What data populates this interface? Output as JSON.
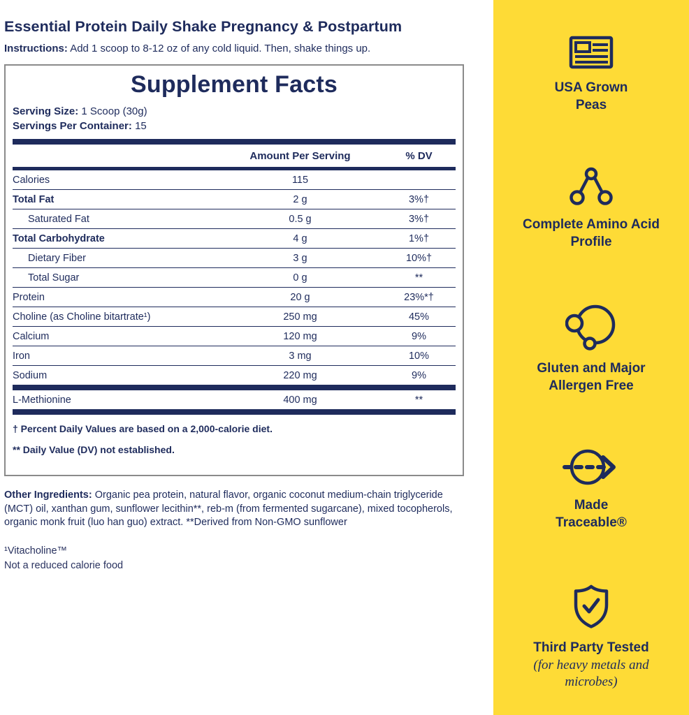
{
  "colors": {
    "navy": "#1E2B5C",
    "yellow": "#FEDB36",
    "box_border_gray": "#8A8A8A"
  },
  "header": {
    "title": "Essential Protein Daily Shake Pregnancy & Postpartum",
    "instructions_label": "Instructions:",
    "instructions_text": "Add 1 scoop to 8-12 oz of any cold liquid. Then, shake things up."
  },
  "supplement_facts": {
    "title": "Supplement Facts",
    "serving_size_label": "Serving Size:",
    "serving_size_value": "1 Scoop (30g)",
    "servings_label": "Servings Per Container:",
    "servings_value": "15",
    "columns": {
      "amount": "Amount Per Serving",
      "dv": "% DV"
    },
    "rows": [
      {
        "label": "Calories",
        "amount": "115",
        "dv": "",
        "indent": false,
        "bold": false,
        "sep": "thin"
      },
      {
        "label": "Total Fat",
        "amount": "2 g",
        "dv": "3%†",
        "indent": false,
        "bold": true,
        "sep": "thin"
      },
      {
        "label": "Saturated Fat",
        "amount": "0.5 g",
        "dv": "3%†",
        "indent": true,
        "bold": false,
        "sep": "thin"
      },
      {
        "label": "Total Carbohydrate",
        "amount": "4 g",
        "dv": "1%†",
        "indent": false,
        "bold": true,
        "sep": "thin"
      },
      {
        "label": "Dietary Fiber",
        "amount": "3 g",
        "dv": "10%†",
        "indent": true,
        "bold": false,
        "sep": "thin"
      },
      {
        "label": "Total Sugar",
        "amount": "0 g",
        "dv": "**",
        "indent": true,
        "bold": false,
        "sep": "thin"
      },
      {
        "label": "Protein",
        "amount": "20 g",
        "dv": "23%*†",
        "indent": false,
        "bold": false,
        "sep": "thin"
      },
      {
        "label": "Choline (as Choline bitartrate¹)",
        "amount": "250 mg",
        "dv": "45%",
        "indent": false,
        "bold": false,
        "sep": "thin"
      },
      {
        "label": "Calcium",
        "amount": "120 mg",
        "dv": "9%",
        "indent": false,
        "bold": false,
        "sep": "thin"
      },
      {
        "label": "Iron",
        "amount": "3 mg",
        "dv": "10%",
        "indent": false,
        "bold": false,
        "sep": "thin"
      },
      {
        "label": "Sodium",
        "amount": "220 mg",
        "dv": "9%",
        "indent": false,
        "bold": false,
        "sep": "thick"
      },
      {
        "label": "L-Methionine",
        "amount": "400 mg",
        "dv": "**",
        "indent": false,
        "bold": false,
        "sep": "thick"
      }
    ],
    "footnotes": [
      "† Percent Daily Values are based on a 2,000-calorie diet.",
      "** Daily Value (DV) not established."
    ]
  },
  "other_ingredients": {
    "label": "Other Ingredients:",
    "text": "Organic pea protein, natural flavor, organic coconut medium-chain triglyceride (MCT) oil, xanthan gum, sunflower lecithin**, reb-m (from fermented sugarcane), mixed tocopherols, organic monk fruit (luo han guo) extract. **Derived from Non-GMO sunflower"
  },
  "footer_notes": {
    "line1": "¹Vitacholine™",
    "line2": "Not a reduced calorie food"
  },
  "sidebar": {
    "items": [
      {
        "icon": "usa-flag-icon",
        "label": "USA Grown Peas"
      },
      {
        "icon": "molecule-icon",
        "label": "Complete Amino Acid Profile"
      },
      {
        "icon": "bubbles-icon",
        "label": "Gluten and Major Allergen Free"
      },
      {
        "icon": "traceable-arrow-icon",
        "label": "Made Traceable®"
      },
      {
        "icon": "shield-check-icon",
        "label": "Third Party Tested",
        "sublabel": "(for heavy metals and microbes)"
      }
    ]
  }
}
